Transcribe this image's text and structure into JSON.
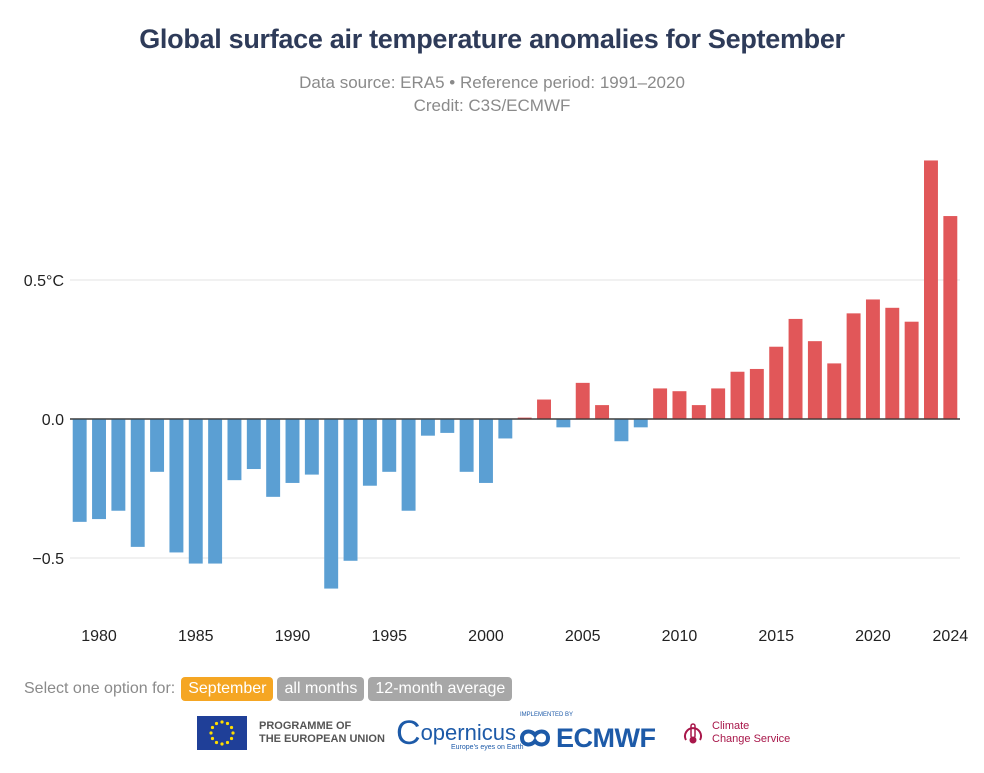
{
  "title": "Global surface air temperature anomalies for September",
  "subtitle1": "Data source: ERA5 • Reference period: 1991–2020",
  "subtitle2": "Credit: C3S/ECMWF",
  "chart_data": {
    "type": "bar",
    "x": [
      1979,
      1980,
      1981,
      1982,
      1983,
      1984,
      1985,
      1986,
      1987,
      1988,
      1989,
      1990,
      1991,
      1992,
      1993,
      1994,
      1995,
      1996,
      1997,
      1998,
      1999,
      2000,
      2001,
      2002,
      2003,
      2004,
      2005,
      2006,
      2007,
      2008,
      2009,
      2010,
      2011,
      2012,
      2013,
      2014,
      2015,
      2016,
      2017,
      2018,
      2019,
      2020,
      2021,
      2022,
      2023,
      2024
    ],
    "values": [
      -0.37,
      -0.36,
      -0.33,
      -0.46,
      -0.19,
      -0.48,
      -0.52,
      -0.52,
      -0.22,
      -0.18,
      -0.28,
      -0.23,
      -0.2,
      -0.61,
      -0.51,
      -0.24,
      -0.19,
      -0.33,
      -0.06,
      -0.05,
      -0.19,
      -0.23,
      -0.07,
      0.005,
      0.07,
      -0.03,
      0.13,
      0.05,
      -0.08,
      -0.03,
      0.11,
      0.1,
      0.05,
      0.11,
      0.17,
      0.18,
      0.26,
      0.36,
      0.28,
      0.2,
      0.38,
      0.43,
      0.4,
      0.35,
      0.93,
      0.73
    ],
    "xticks": [
      1980,
      1985,
      1990,
      1995,
      2000,
      2005,
      2010,
      2015,
      2020,
      2024
    ],
    "ytick_values": [
      -0.5,
      0.0,
      0.5
    ],
    "ytick_labels": [
      "−0.5",
      "0.0",
      "0.5°C"
    ],
    "ylim": [
      -0.7,
      1.0
    ],
    "colors": {
      "positive": "#e15759",
      "negative": "#5b9fd3"
    },
    "grid": true
  },
  "selector": {
    "label": "Select one option for:",
    "options": [
      "September",
      "all months",
      "12-month average"
    ],
    "selected": "September",
    "active_color": "#f5a623",
    "inactive_color": "#a7a7a7"
  },
  "logos": {
    "eu_line1": "PROGRAMME OF",
    "eu_line2": "THE EUROPEAN UNION",
    "copernicus": "opernicus",
    "copernicus_c": "C",
    "copernicus_tag": "Europe's eyes on Earth",
    "ecmwf_small": "IMPLEMENTED BY",
    "ecmwf": "ECMWF",
    "c3s_line1": "Climate",
    "c3s_line2": "Change Service"
  }
}
